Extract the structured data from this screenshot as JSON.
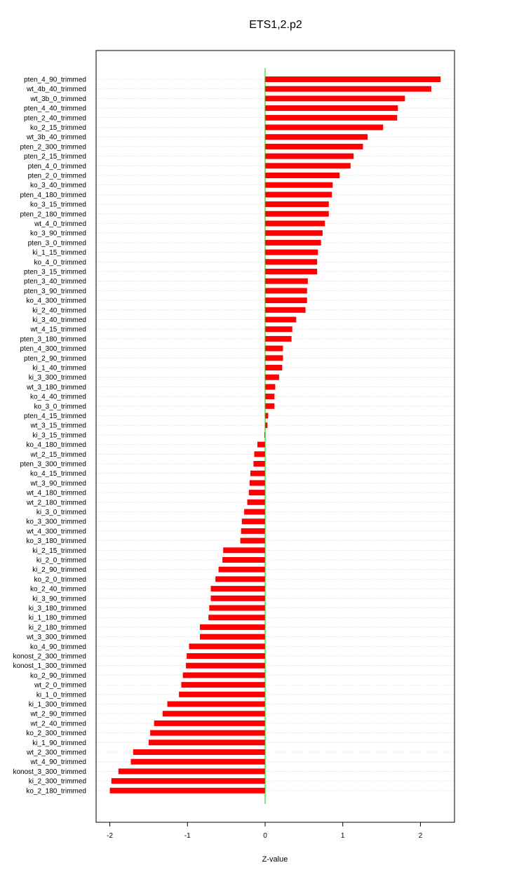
{
  "chart_data": {
    "type": "bar",
    "orientation": "horizontal",
    "title": "ETS1,2.p2",
    "xlabel": "Z-value",
    "ylabel": "",
    "xlim": [
      -2.2,
      2.45
    ],
    "xticks": [
      -2,
      -1,
      0,
      1,
      2
    ],
    "xtick_labels": [
      "-2",
      "-1",
      "0",
      "1",
      "2"
    ],
    "grid": "horizontal dotted",
    "colors": {
      "bar": "#ff0000",
      "zero_line": "#00cc00",
      "grid": "#cccccc",
      "frame": "#000000"
    },
    "categories": [
      "pten_4_90_trimmed",
      "wt_4b_40_trimmed",
      "wt_3b_0_trimmed",
      "pten_4_40_trimmed",
      "pten_2_40_trimmed",
      "ko_2_15_trimmed",
      "wt_3b_40_trimmed",
      "pten_2_300_trimmed",
      "pten_2_15_trimmed",
      "pten_4_0_trimmed",
      "pten_2_0_trimmed",
      "ko_3_40_trimmed",
      "pten_4_180_trimmed",
      "ko_3_15_trimmed",
      "pten_2_180_trimmed",
      "wt_4_0_trimmed",
      "ko_3_90_trimmed",
      "pten_3_0_trimmed",
      "ki_1_15_trimmed",
      "ko_4_0_trimmed",
      "pten_3_15_trimmed",
      "pten_3_40_trimmed",
      "pten_3_90_trimmed",
      "ko_4_300_trimmed",
      "ki_2_40_trimmed",
      "ki_3_40_trimmed",
      "wt_4_15_trimmed",
      "pten_3_180_trimmed",
      "pten_4_300_trimmed",
      "pten_2_90_trimmed",
      "ki_1_40_trimmed",
      "ki_3_300_trimmed",
      "wt_3_180_trimmed",
      "ko_4_40_trimmed",
      "ko_3_0_trimmed",
      "pten_4_15_trimmed",
      "wt_3_15_trimmed",
      "ki_3_15_trimmed",
      "ko_4_180_trimmed",
      "wt_2_15_trimmed",
      "pten_3_300_trimmed",
      "ko_4_15_trimmed",
      "wt_3_90_trimmed",
      "wt_4_180_trimmed",
      "wt_2_180_trimmed",
      "ki_3_0_trimmed",
      "ko_3_300_trimmed",
      "wt_4_300_trimmed",
      "ko_3_180_trimmed",
      "ki_2_15_trimmed",
      "ki_2_0_trimmed",
      "ki_2_90_trimmed",
      "ko_2_0_trimmed",
      "ko_2_40_trimmed",
      "ki_3_90_trimmed",
      "ki_3_180_trimmed",
      "ki_1_180_trimmed",
      "ki_2_180_trimmed",
      "wt_3_300_trimmed",
      "ko_4_90_trimmed",
      "konost_2_300_trimmed",
      "konost_1_300_trimmed",
      "ko_2_90_trimmed",
      "wt_2_0_trimmed",
      "ki_1_0_trimmed",
      "ki_1_300_trimmed",
      "wt_2_90_trimmed",
      "wt_2_40_trimmed",
      "ko_2_300_trimmed",
      "ki_1_90_trimmed",
      "wt_2_300_trimmed",
      "wt_4_90_trimmed",
      "konost_3_300_trimmed",
      "ki_2_300_trimmed",
      "ko_2_180_trimmed"
    ],
    "values": [
      2.26,
      2.14,
      1.8,
      1.71,
      1.7,
      1.52,
      1.32,
      1.26,
      1.14,
      1.1,
      0.96,
      0.87,
      0.86,
      0.82,
      0.82,
      0.77,
      0.74,
      0.72,
      0.68,
      0.67,
      0.67,
      0.55,
      0.54,
      0.54,
      0.52,
      0.4,
      0.35,
      0.34,
      0.23,
      0.23,
      0.22,
      0.18,
      0.13,
      0.12,
      0.12,
      0.04,
      0.03,
      -0.01,
      -0.1,
      -0.14,
      -0.15,
      -0.19,
      -0.2,
      -0.21,
      -0.23,
      -0.27,
      -0.3,
      -0.31,
      -0.32,
      -0.54,
      -0.55,
      -0.6,
      -0.64,
      -0.7,
      -0.7,
      -0.72,
      -0.73,
      -0.84,
      -0.84,
      -0.98,
      -1.01,
      -1.02,
      -1.06,
      -1.08,
      -1.11,
      -1.26,
      -1.32,
      -1.43,
      -1.48,
      -1.5,
      -1.7,
      -1.73,
      -1.89,
      -1.98,
      -2.0
    ]
  }
}
